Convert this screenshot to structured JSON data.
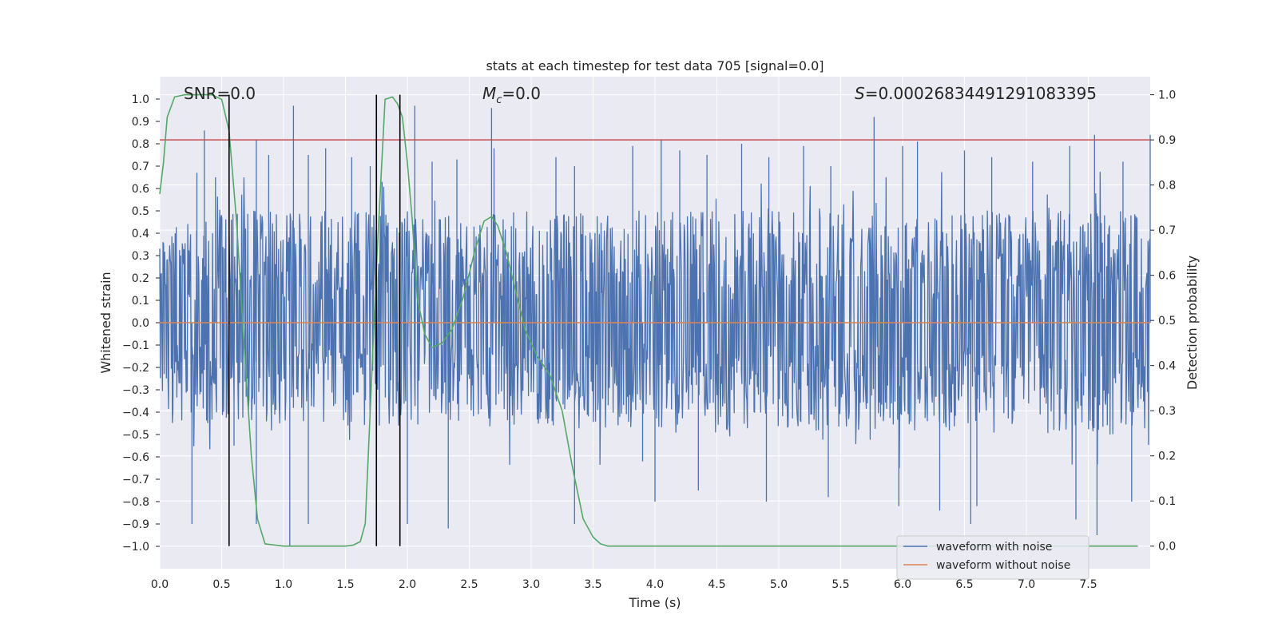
{
  "chart_data": {
    "type": "line",
    "title": "stats at each timestep for test data 705 [signal=0.0]",
    "xlabel": "Time (s)",
    "ylabel": "Whitened strain",
    "y2label": "Detection probability",
    "xlim": [
      0.0,
      8.0
    ],
    "ylim": [
      -1.1,
      1.1
    ],
    "y2lim": [
      -0.05,
      1.04
    ],
    "grid": true,
    "xticks": [
      "0.0",
      "0.5",
      "1.0",
      "1.5",
      "2.0",
      "2.5",
      "3.0",
      "3.5",
      "4.0",
      "4.5",
      "5.0",
      "5.5",
      "6.0",
      "6.5",
      "7.0",
      "7.5"
    ],
    "yticks": [
      "1.0",
      "0.9",
      "0.8",
      "0.7",
      "0.6",
      "0.5",
      "0.4",
      "0.3",
      "0.2",
      "0.1",
      "0.0",
      "−0.1",
      "−0.2",
      "−0.3",
      "−0.4",
      "−0.5",
      "−0.6",
      "−0.7",
      "−0.8",
      "−0.9",
      "−1.0"
    ],
    "y2ticks": [
      "1.0",
      "0.9",
      "0.8",
      "0.7",
      "0.6",
      "0.5",
      "0.4",
      "0.3",
      "0.2",
      "0.1",
      "0.0"
    ],
    "annotations": {
      "snr": "SNR=0.0",
      "mc_sym": "M",
      "mc_sub": "c",
      "mc_val": "=0.0",
      "s_sym": "S",
      "s_val": "=0.00026834491291083395"
    },
    "legend": {
      "placement": "lower-right",
      "entries": [
        "waveform with noise",
        "waveform without noise"
      ]
    },
    "colors": {
      "noise": "#4c72b0",
      "clean": "#dd8452",
      "probability": "#55a868",
      "threshold": "#c44e52",
      "vlines": "#000000",
      "plot_bg": "#eaeaf2",
      "grid": "#ffffff"
    },
    "series": [
      {
        "name": "waveform with noise",
        "kind": "noise_band",
        "sample_rate": 2048,
        "duration": 8.0,
        "upper_envelope": [
          [
            0.0,
            0.45
          ],
          [
            0.5,
            0.5
          ],
          [
            1.0,
            0.5
          ],
          [
            1.5,
            0.5
          ],
          [
            2.0,
            0.5
          ],
          [
            3.0,
            0.5
          ],
          [
            4.0,
            0.5
          ],
          [
            5.0,
            0.5
          ],
          [
            6.0,
            0.5
          ],
          [
            7.0,
            0.5
          ],
          [
            8.0,
            0.5
          ]
        ],
        "lower_envelope": [
          [
            0.0,
            -0.45
          ],
          [
            8.0,
            -0.5
          ]
        ],
        "peaks": [
          [
            0.36,
            0.86
          ],
          [
            1.08,
            0.97
          ],
          [
            2.06,
            0.97
          ],
          [
            2.68,
            0.96
          ],
          [
            5.77,
            0.92
          ],
          [
            7.55,
            0.84
          ],
          [
            8.0,
            0.84
          ],
          [
            0.3,
            0.67
          ],
          [
            0.45,
            0.65
          ],
          [
            0.78,
            0.82
          ],
          [
            0.88,
            0.75
          ],
          [
            1.2,
            0.75
          ],
          [
            1.34,
            0.78
          ],
          [
            1.55,
            0.74
          ],
          [
            1.7,
            0.7
          ],
          [
            2.2,
            0.72
          ],
          [
            2.4,
            0.73
          ],
          [
            2.7,
            0.78
          ],
          [
            3.2,
            0.74
          ],
          [
            3.35,
            0.7
          ],
          [
            3.82,
            0.79
          ],
          [
            4.05,
            0.82
          ],
          [
            4.2,
            0.77
          ],
          [
            4.42,
            0.75
          ],
          [
            4.7,
            0.8
          ],
          [
            4.92,
            0.74
          ],
          [
            5.2,
            0.79
          ],
          [
            5.42,
            0.7
          ],
          [
            6.0,
            0.79
          ],
          [
            6.12,
            0.81
          ],
          [
            6.5,
            0.77
          ],
          [
            6.72,
            0.74
          ],
          [
            7.05,
            0.72
          ],
          [
            7.35,
            0.79
          ],
          [
            7.78,
            0.72
          ],
          [
            0.26,
            -0.9
          ],
          [
            0.78,
            -0.9
          ],
          [
            1.05,
            -1.0
          ],
          [
            1.2,
            -0.9
          ],
          [
            2.0,
            -0.9
          ],
          [
            2.33,
            -0.92
          ],
          [
            3.35,
            -0.9
          ],
          [
            6.55,
            -0.9
          ],
          [
            6.3,
            -0.84
          ],
          [
            6.6,
            -0.82
          ],
          [
            7.4,
            -0.88
          ],
          [
            7.57,
            -0.95
          ],
          [
            5.97,
            -0.82
          ],
          [
            4.0,
            -0.8
          ],
          [
            4.35,
            -0.75
          ],
          [
            4.9,
            -0.8
          ],
          [
            5.4,
            -0.78
          ],
          [
            7.85,
            -0.8
          ],
          [
            0.6,
            -0.55
          ],
          [
            3.9,
            -0.62
          ]
        ]
      },
      {
        "name": "waveform without noise",
        "kind": "line",
        "x": [
          0.0,
          8.0
        ],
        "y": [
          0.0,
          0.0
        ]
      },
      {
        "name": "",
        "kind": "probability_line",
        "x": [
          0.0,
          0.03,
          0.06,
          0.12,
          0.2,
          0.3,
          0.42,
          0.5,
          0.56,
          0.62,
          0.68,
          0.74,
          0.79,
          0.85,
          1.0,
          1.2,
          1.4,
          1.5,
          1.56,
          1.62,
          1.66,
          1.7,
          1.75,
          1.82,
          1.88,
          1.92,
          1.96,
          2.0,
          2.04,
          2.08,
          2.14,
          2.2,
          2.28,
          2.36,
          2.45,
          2.55,
          2.62,
          2.68,
          2.73,
          2.8,
          2.87,
          2.95,
          3.05,
          3.15,
          3.25,
          3.33,
          3.42,
          3.5,
          3.56,
          3.62,
          3.7,
          4.0,
          5.0,
          6.0,
          7.0,
          7.9
        ],
        "y": [
          0.78,
          0.85,
          0.95,
          0.995,
          1.0,
          1.0,
          1.0,
          0.99,
          0.92,
          0.72,
          0.45,
          0.2,
          0.06,
          0.005,
          0.0,
          0.0,
          0.0,
          0.0,
          0.002,
          0.01,
          0.05,
          0.3,
          0.62,
          0.99,
          0.995,
          0.98,
          0.95,
          0.85,
          0.72,
          0.55,
          0.47,
          0.44,
          0.45,
          0.48,
          0.55,
          0.66,
          0.72,
          0.73,
          0.71,
          0.65,
          0.57,
          0.48,
          0.42,
          0.38,
          0.3,
          0.18,
          0.06,
          0.02,
          0.005,
          0.0,
          0.0,
          0.0,
          0.0,
          0.0,
          0.0,
          0.0
        ]
      },
      {
        "name": "",
        "kind": "threshold_line",
        "x": [
          0.0,
          8.0
        ],
        "y2": [
          0.9,
          0.9
        ]
      }
    ],
    "vertical_lines": [
      0.56,
      1.75,
      1.94
    ]
  }
}
